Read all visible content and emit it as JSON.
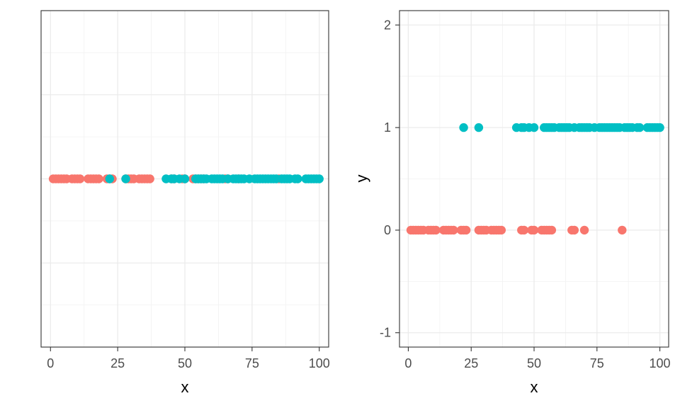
{
  "colors": {
    "group0": "#F8766D",
    "group1": "#00BFC4"
  },
  "chart_data": [
    {
      "type": "scatter",
      "title": "",
      "xlabel": "x",
      "ylabel": "",
      "xlim": [
        -3.5,
        103.5
      ],
      "ylim": [
        -1,
        1
      ],
      "xticks": [
        0,
        25,
        50,
        75,
        100
      ],
      "xtick_labels": [
        "0",
        "25",
        "50",
        "75",
        "100"
      ],
      "grid": true,
      "legend": "none",
      "series": [
        {
          "values_y": 0,
          "color_key": "group0",
          "x": [
            1,
            2,
            3,
            4,
            5,
            6,
            8,
            9,
            10,
            11,
            14,
            15,
            16,
            17,
            18,
            21,
            22,
            23,
            28,
            29,
            30,
            31,
            33,
            34,
            35,
            36,
            37,
            45,
            46,
            49,
            50,
            53,
            54,
            55,
            56,
            57,
            65,
            66,
            70,
            85
          ]
        },
        {
          "values_y": 0,
          "color_key": "group1",
          "x": [
            22,
            28,
            43,
            45,
            46,
            48,
            50,
            54,
            55,
            56,
            57,
            58,
            60,
            61,
            62,
            63,
            64,
            66,
            68,
            69,
            70,
            71,
            72,
            74,
            76,
            77,
            78,
            79,
            80,
            81,
            82,
            83,
            84,
            86,
            87,
            88,
            89,
            91,
            92,
            95,
            96,
            97,
            98,
            99,
            100
          ]
        }
      ]
    },
    {
      "type": "scatter",
      "title": "",
      "xlabel": "x",
      "ylabel": "y",
      "xlim": [
        -3.5,
        103.5
      ],
      "ylim": [
        -1.14,
        2.14
      ],
      "xticks": [
        0,
        25,
        50,
        75,
        100
      ],
      "xtick_labels": [
        "0",
        "25",
        "50",
        "75",
        "100"
      ],
      "yticks": [
        -1,
        0,
        1,
        2
      ],
      "ytick_labels": [
        "-1",
        "0",
        "1",
        "2"
      ],
      "grid": true,
      "legend": "none",
      "series": [
        {
          "values_y": 0,
          "color_key": "group0",
          "x": [
            1,
            2,
            3,
            4,
            5,
            6,
            8,
            9,
            10,
            11,
            14,
            15,
            16,
            17,
            18,
            21,
            22,
            23,
            28,
            29,
            30,
            31,
            33,
            34,
            35,
            36,
            37,
            45,
            46,
            49,
            50,
            53,
            54,
            55,
            56,
            57,
            65,
            66,
            70,
            85
          ]
        },
        {
          "values_y": 1,
          "color_key": "group1",
          "x": [
            22,
            28,
            43,
            45,
            46,
            48,
            50,
            54,
            55,
            56,
            57,
            58,
            60,
            61,
            62,
            63,
            64,
            66,
            68,
            69,
            70,
            71,
            72,
            74,
            76,
            77,
            78,
            79,
            80,
            81,
            82,
            83,
            84,
            86,
            87,
            88,
            89,
            91,
            92,
            95,
            96,
            97,
            98,
            99,
            100
          ]
        }
      ]
    }
  ]
}
